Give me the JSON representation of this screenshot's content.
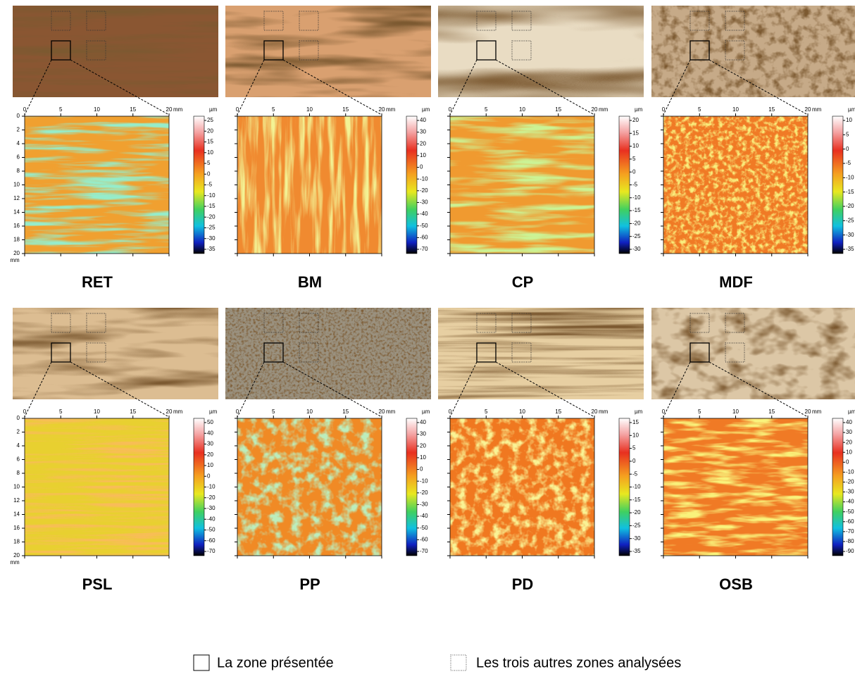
{
  "panels": [
    {
      "label": "RET",
      "x_unit": "mm",
      "xticks": [
        0,
        5,
        10,
        15,
        20
      ],
      "y_unit": "mm",
      "yticks": [
        0,
        2,
        4,
        6,
        8,
        10,
        12,
        14,
        16,
        18,
        20
      ],
      "colorbar": {
        "unit": "µm",
        "ticks": [
          25,
          20,
          15,
          10,
          5,
          0,
          -5,
          -10,
          -15,
          -20,
          -25,
          -30,
          -35
        ]
      }
    },
    {
      "label": "BM",
      "x_unit": "mm",
      "xticks": [
        0,
        5,
        10,
        15,
        20
      ],
      "colorbar": {
        "unit": "µm",
        "ticks": [
          40,
          30,
          20,
          10,
          0,
          -10,
          -20,
          -30,
          -40,
          -50,
          -60,
          -70
        ]
      }
    },
    {
      "label": "CP",
      "x_unit": "mm",
      "xticks": [
        0,
        5,
        10,
        15,
        20
      ],
      "colorbar": {
        "unit": "µm",
        "ticks": [
          20,
          15,
          10,
          5,
          0,
          -5,
          -10,
          -15,
          -20,
          -25,
          -30
        ]
      }
    },
    {
      "label": "MDF",
      "x_unit": "mm",
      "xticks": [
        0,
        5,
        10,
        15,
        20
      ],
      "colorbar": {
        "unit": "µm",
        "ticks": [
          10,
          5,
          0,
          -5,
          -10,
          -15,
          -20,
          -25,
          -30,
          -35
        ]
      }
    },
    {
      "label": "PSL",
      "x_unit": "mm",
      "xticks": [
        0,
        5,
        10,
        15,
        20
      ],
      "y_unit": "mm",
      "yticks": [
        0,
        2,
        4,
        6,
        8,
        10,
        12,
        14,
        16,
        18,
        20
      ],
      "colorbar": {
        "unit": "µm",
        "ticks": [
          50,
          40,
          30,
          20,
          10,
          0,
          -10,
          -20,
          -30,
          -40,
          -50,
          -60,
          -70
        ]
      }
    },
    {
      "label": "PP",
      "x_unit": "mm",
      "xticks": [
        0,
        5,
        10,
        15,
        20
      ],
      "colorbar": {
        "unit": "µm",
        "ticks": [
          40,
          30,
          20,
          10,
          0,
          -10,
          -20,
          -30,
          -40,
          -50,
          -60,
          -70
        ]
      }
    },
    {
      "label": "PD",
      "x_unit": "mm",
      "xticks": [
        0,
        5,
        10,
        15,
        20
      ],
      "colorbar": {
        "unit": "µm",
        "ticks": [
          15,
          10,
          5,
          0,
          -5,
          -10,
          -15,
          -20,
          -25,
          -30,
          -35
        ]
      }
    },
    {
      "label": "OSB",
      "x_unit": "mm",
      "xticks": [
        0,
        5,
        10,
        15,
        20
      ],
      "colorbar": {
        "unit": "µm",
        "ticks": [
          40,
          30,
          20,
          10,
          0,
          -10,
          -20,
          -30,
          -40,
          -50,
          -60,
          -70,
          -80,
          -90
        ]
      }
    }
  ],
  "legend": {
    "presented": "La zone présentée",
    "others": "Les trois autres zones analysées"
  }
}
